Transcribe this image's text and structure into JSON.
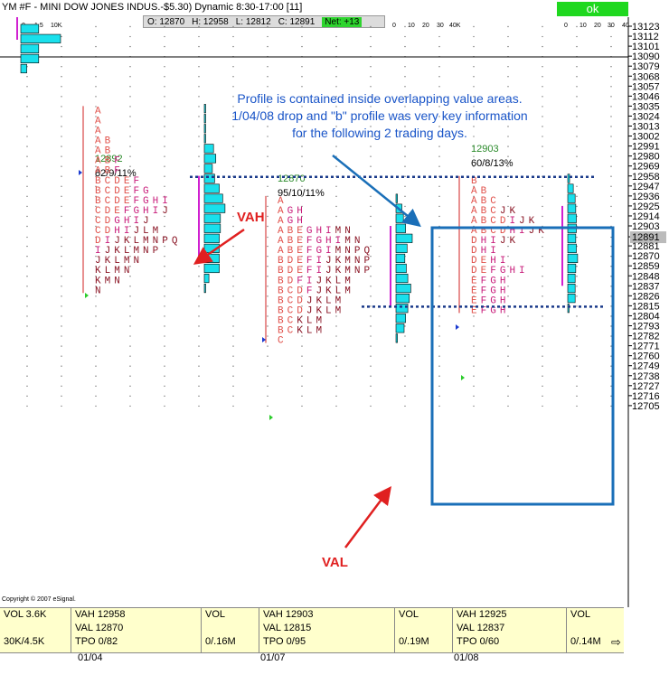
{
  "header": {
    "title": "YM #F - MINI DOW JONES INDUS.-$5.30) Dynamic 8:30-17:00 [11]",
    "ok_label": "ok",
    "ohlc": {
      "open": "O: 12870",
      "high": "H: 12958",
      "low": "L: 12812",
      "close": "C: 12891",
      "net": "Net: +13"
    },
    "left_axis_ticks": [
      "0",
      "1.5",
      "10K"
    ],
    "mid_axis_ticks": [
      "0",
      "10",
      "20",
      "30",
      "40K"
    ],
    "right_axis_ticks": [
      "0",
      "10",
      "20",
      "30",
      "40"
    ]
  },
  "annotation": {
    "lines": [
      "Profile is contained inside overlapping value areas.",
      "1/04/08 drop and \"b\" profile was very key information",
      "for the following 2 trading days."
    ],
    "vah_label": "VAH",
    "val_label": "VAL"
  },
  "copyright": "Copyright © 2007 eSignal.",
  "chart_data": {
    "type": "table",
    "y_axis": {
      "ticks": [
        13123,
        13112,
        13101,
        13090,
        13079,
        13068,
        13057,
        13046,
        13035,
        13024,
        13013,
        13002,
        12991,
        12980,
        12969,
        12958,
        12947,
        12936,
        12925,
        12914,
        12903,
        12891,
        12881,
        12870,
        12859,
        12848,
        12837,
        12826,
        12815,
        12804,
        12793,
        12782,
        12771,
        12760,
        12749,
        12738,
        12727,
        12716,
        12705
      ],
      "current": 12891
    },
    "profiles": [
      {
        "date": "01/04",
        "top_price": "12892",
        "top_stats": "82/9/11%",
        "vah": 12958,
        "val": 12870,
        "rows": [
          "A",
          "A",
          "A",
          "A B",
          "A B",
          "A B F",
          "A B F",
          "B C D E F",
          "B C D E F G",
          "B C D E F G H I",
          "C D E F G H I J",
          "C D G H I J",
          "C D H I J L M",
          "D I J K L M N P Q",
          "I J K L M N P",
          "J K L M N",
          "K L M N",
          "K M N",
          "N"
        ],
        "volume": [
          0.1,
          0.1,
          0.1,
          0.1,
          0.8,
          1.0,
          0.7,
          0.9,
          1.3,
          1.6,
          1.8,
          1.4,
          1.4,
          1.3,
          1.3,
          1.3,
          1.3,
          0.4,
          0.1
        ],
        "stats": {
          "l1": "VOL 3.6K",
          "l2": "30K/4.5K",
          "vah": "VAH 12958",
          "val": "VAL 12870",
          "tpo": "TPO 0/82",
          "vol": "VOL",
          "vol2": "0/.16M"
        }
      },
      {
        "date": "01/07",
        "top_price": "12870",
        "top_stats": "95/10/11%",
        "vah": 12903,
        "val": 12815,
        "rows": [
          "A",
          "A G H",
          "A G H",
          "A B E G H I M N",
          "A B E F G H I M N",
          "A B E F G I M N P Q",
          "B D E F I J K M N P",
          "B D E F I J K M N P",
          "B D F I J K L M",
          "B C D F J K L M",
          "B C D J K L M",
          "B C D J K L M",
          "B C K L M",
          "B C K L M",
          "C"
        ],
        "volume": [
          0.2,
          0.8,
          1.0,
          1.3,
          2.2,
          1.5,
          1.2,
          1.4,
          1.6,
          2.0,
          1.8,
          1.6,
          1.3,
          1.1,
          0.2
        ],
        "stats": {
          "vah": "VAH 12903",
          "val": "VAL 12815",
          "tpo": "TPO 0/95",
          "vol": "VOL",
          "vol2": "0/.19M"
        }
      },
      {
        "date": "01/08",
        "top_price": "12903",
        "top_stats": "60/8/13%",
        "vah": 12925,
        "val": 12837,
        "rows": [
          "B",
          "A B",
          "A B C",
          "A B C J K",
          "A B C D I J K",
          "A B C D H I J K",
          "D H I J K",
          "D H I",
          "D E H I",
          "D E F G H I",
          "E F G H",
          "E F G H",
          "E F G H",
          "E F G H"
        ],
        "volume": [
          0.3,
          0.9,
          1.2,
          1.3,
          1.4,
          1.4,
          1.3,
          1.4,
          1.6,
          1.3,
          1.2,
          1.2,
          1.2,
          0.2
        ],
        "stats": {
          "vah": "VAH 12925",
          "val": "VAL 12837",
          "tpo": "TPO 0/60",
          "vol": "VOL",
          "vol2": "0/.14M"
        }
      }
    ],
    "top_left_volume": [
      0.9,
      2.0,
      0.9,
      0.9,
      0.3
    ]
  }
}
